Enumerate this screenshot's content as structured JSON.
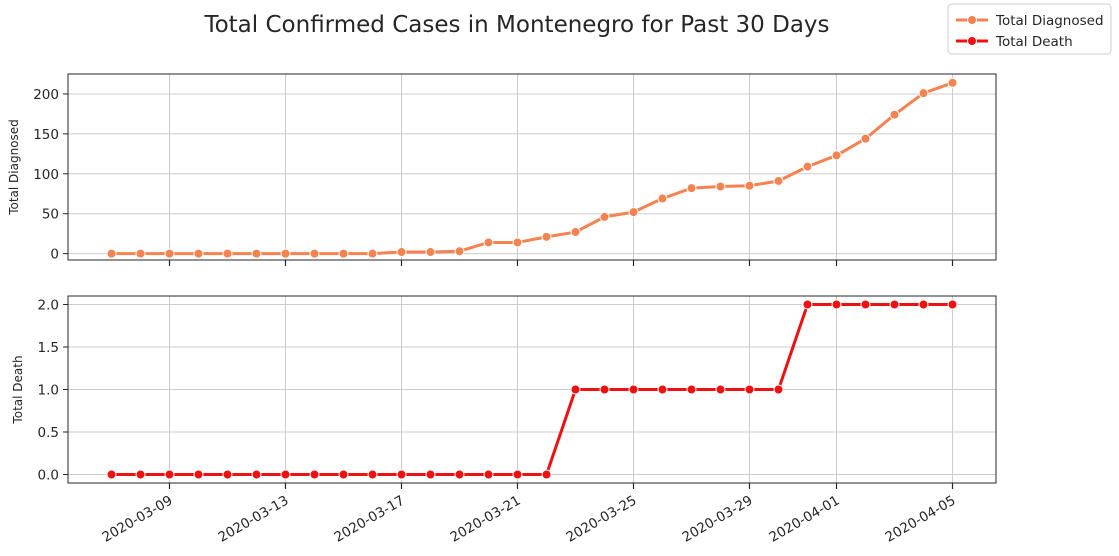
{
  "chart_data": {
    "type": "line",
    "title": "Total Confirmed Cases in Montenegro for Past 30 Days",
    "x": [
      "2020-03-07",
      "2020-03-08",
      "2020-03-09",
      "2020-03-10",
      "2020-03-11",
      "2020-03-12",
      "2020-03-13",
      "2020-03-14",
      "2020-03-15",
      "2020-03-16",
      "2020-03-17",
      "2020-03-18",
      "2020-03-19",
      "2020-03-20",
      "2020-03-21",
      "2020-03-22",
      "2020-03-23",
      "2020-03-24",
      "2020-03-25",
      "2020-03-26",
      "2020-03-27",
      "2020-03-28",
      "2020-03-29",
      "2020-03-30",
      "2020-03-31",
      "2020-04-01",
      "2020-04-02",
      "2020-04-03",
      "2020-04-04",
      "2020-04-05"
    ],
    "x_ticks": [
      "2020-03-09",
      "2020-03-13",
      "2020-03-17",
      "2020-03-21",
      "2020-03-25",
      "2020-03-29",
      "2020-04-01",
      "2020-04-05"
    ],
    "legend": {
      "placement": "top-right",
      "entries": [
        "Total Diagnosed",
        "Total Death"
      ]
    },
    "grid": true,
    "series": [
      {
        "name": "Total Diagnosed",
        "ylabel": "Total Diagnosed",
        "color": "#f5824f",
        "ylim": [
          -8,
          225
        ],
        "yticks": [
          0,
          50,
          100,
          150,
          200
        ],
        "values": [
          0,
          0,
          0,
          0,
          0,
          0,
          0,
          0,
          0,
          0,
          2,
          2,
          3,
          14,
          14,
          21,
          27,
          46,
          52,
          69,
          82,
          84,
          85,
          91,
          109,
          123,
          144,
          174,
          201,
          214
        ]
      },
      {
        "name": "Total Death",
        "ylabel": "Total Death",
        "color": "#ee1111",
        "ylim": [
          -0.1,
          2.1
        ],
        "yticks": [
          "0.0",
          "0.5",
          "1.0",
          "1.5",
          "2.0"
        ],
        "values": [
          0,
          0,
          0,
          0,
          0,
          0,
          0,
          0,
          0,
          0,
          0,
          0,
          0,
          0,
          0,
          0,
          1,
          1,
          1,
          1,
          1,
          1,
          1,
          1,
          2,
          2,
          2,
          2,
          2,
          2
        ]
      }
    ]
  }
}
